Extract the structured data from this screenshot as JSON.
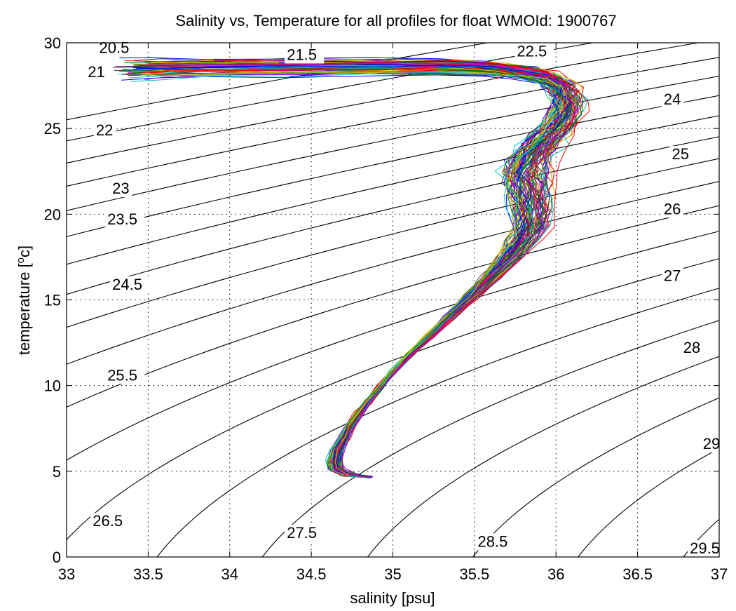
{
  "chart_data": {
    "type": "line",
    "title": "Salinity vs, Temperature for all profiles for float WMOId: 1900767",
    "xlabel": "salinity [psu]",
    "ylabel_parts": [
      "temperature [",
      "o",
      "c]"
    ],
    "xlim": [
      33,
      37
    ],
    "ylim": [
      0,
      30
    ],
    "xticks": [
      33,
      33.5,
      34,
      34.5,
      35,
      35.5,
      36,
      36.5,
      37
    ],
    "xtick_labels": [
      "33",
      "33.5",
      "34",
      "34.5",
      "35",
      "35.5",
      "36",
      "36.5",
      "37"
    ],
    "yticks": [
      0,
      5,
      10,
      15,
      20,
      25,
      30
    ],
    "ytick_labels": [
      "0",
      "5",
      "10",
      "15",
      "20",
      "25",
      "30"
    ],
    "grid": true,
    "isopycnal_color": "#000000",
    "isopycnals": [
      {
        "label": "20.5",
        "value": 20.5,
        "label_at": [
          33.2,
          29.4
        ]
      },
      {
        "label": "21",
        "value": 21,
        "label_at": [
          33.13,
          28.0
        ]
      },
      {
        "label": "21.5",
        "value": 21.5,
        "label_at": [
          34.35,
          29.0
        ]
      },
      {
        "label": "22",
        "value": 22,
        "label_at": [
          33.18,
          24.6
        ]
      },
      {
        "label": "22.5",
        "value": 22.5,
        "label_at": [
          35.76,
          29.2
        ]
      },
      {
        "label": "23",
        "value": 23,
        "label_at": [
          33.28,
          21.2
        ]
      },
      {
        "label": "23.5",
        "value": 23.5,
        "label_at": [
          33.25,
          19.4
        ]
      },
      {
        "label": "24",
        "value": 24,
        "label_at": [
          36.66,
          26.4
        ]
      },
      {
        "label": "24.5",
        "value": 24.5,
        "label_at": [
          33.28,
          15.6
        ]
      },
      {
        "label": "25",
        "value": 25,
        "label_at": [
          36.71,
          23.2
        ]
      },
      {
        "label": "25.5",
        "value": 25.5,
        "label_at": [
          33.25,
          10.3
        ]
      },
      {
        "label": "26",
        "value": 26,
        "label_at": [
          36.66,
          20.0
        ]
      },
      {
        "label": "26.5",
        "value": 26.5,
        "label_at": [
          33.16,
          1.8
        ]
      },
      {
        "label": "27",
        "value": 27,
        "label_at": [
          36.66,
          16.1
        ]
      },
      {
        "label": "27.5",
        "value": 27.5,
        "label_at": [
          34.35,
          1.1
        ]
      },
      {
        "label": "28",
        "value": 28,
        "label_at": [
          36.78,
          11.9
        ]
      },
      {
        "label": "28.5",
        "value": 28.5,
        "label_at": [
          35.52,
          0.6
        ]
      },
      {
        "label": "29",
        "value": 29,
        "label_at": [
          36.9,
          6.3
        ]
      },
      {
        "label": "29.5",
        "value": 29.5,
        "label_at": [
          36.82,
          0.2
        ]
      }
    ],
    "profile_colors": [
      "#0000ff",
      "#008000",
      "#ff0000",
      "#00bfbf",
      "#bf00bf",
      "#bfbf00",
      "#404040"
    ],
    "profile_count": 90,
    "mean_profile": {
      "salinity": [
        33.42,
        33.6,
        33.9,
        34.4,
        34.9,
        35.3,
        35.6,
        35.8,
        35.93,
        36.02,
        36.06,
        36.08,
        36.07,
        36.03,
        35.97,
        35.9,
        35.85,
        35.82,
        35.83,
        35.85,
        35.86,
        35.85,
        35.8,
        35.72,
        35.6,
        35.48,
        35.35,
        35.22,
        35.1,
        35.0,
        34.92,
        34.85,
        34.79,
        34.74,
        34.7,
        34.66,
        34.64,
        34.65,
        34.73,
        34.88
      ],
      "temperature": [
        28.4,
        28.45,
        28.5,
        28.55,
        28.6,
        28.6,
        28.5,
        28.3,
        28.0,
        27.6,
        27.1,
        26.6,
        26.0,
        25.3,
        24.6,
        23.9,
        23.2,
        22.5,
        21.8,
        21.0,
        20.2,
        19.3,
        18.5,
        17.5,
        16.3,
        15.2,
        14.0,
        12.8,
        11.8,
        10.8,
        9.9,
        9.1,
        8.4,
        7.7,
        7.0,
        6.3,
        5.6,
        5.1,
        4.8,
        4.7
      ]
    }
  }
}
